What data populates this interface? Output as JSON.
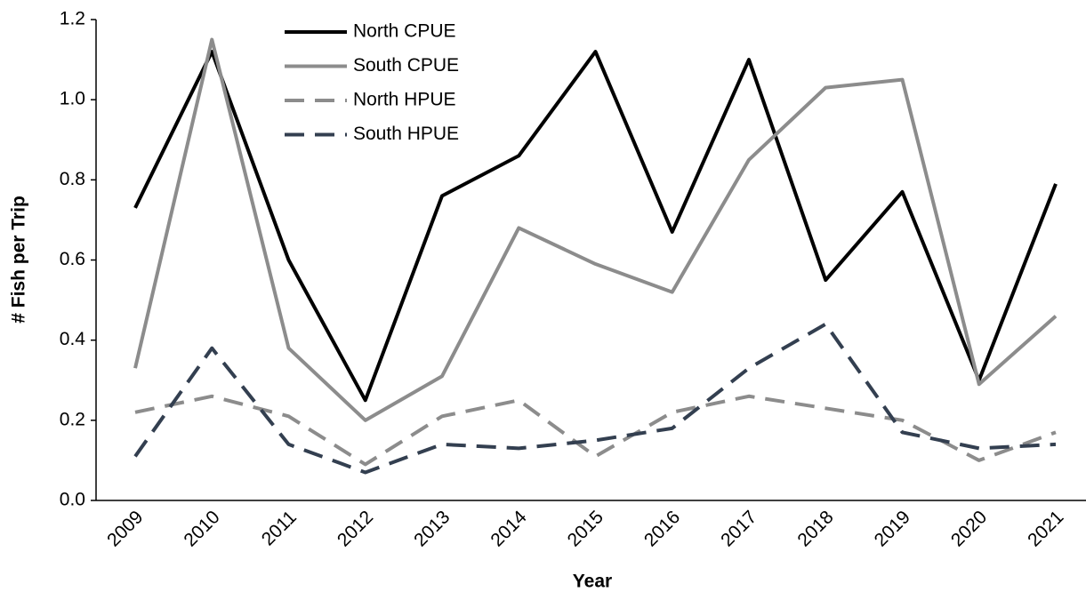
{
  "chart_data": {
    "type": "line",
    "x_label": "Year",
    "y_label": "# Fish per Trip",
    "categories": [
      "2009",
      "2010",
      "2011",
      "2012",
      "2013",
      "2014",
      "2015",
      "2016",
      "2017",
      "2018",
      "2019",
      "2020",
      "2021"
    ],
    "series": [
      {
        "name": "North CPUE",
        "color": "#000000",
        "style": "solid",
        "values": [
          0.73,
          1.12,
          0.6,
          0.25,
          0.76,
          0.86,
          1.12,
          0.67,
          1.1,
          0.55,
          0.77,
          0.3,
          0.79
        ]
      },
      {
        "name": "South CPUE",
        "color": "#8c8c8c",
        "style": "solid",
        "values": [
          0.33,
          1.15,
          0.38,
          0.2,
          0.31,
          0.68,
          0.59,
          0.52,
          0.85,
          1.03,
          1.05,
          0.29,
          0.46
        ]
      },
      {
        "name": "North HPUE",
        "color": "#8c8c8c",
        "style": "dashed",
        "values": [
          0.22,
          0.26,
          0.21,
          0.09,
          0.21,
          0.25,
          0.11,
          0.22,
          0.26,
          0.23,
          0.2,
          0.1,
          0.17
        ]
      },
      {
        "name": "South HPUE",
        "color": "#333f50",
        "style": "dashed",
        "values": [
          0.11,
          0.38,
          0.14,
          0.07,
          0.14,
          0.13,
          0.15,
          0.18,
          0.33,
          0.44,
          0.17,
          0.13,
          0.14
        ]
      }
    ],
    "ylim": [
      0,
      1.2
    ],
    "yticks": [
      {
        "value": 0,
        "label": "0.0"
      },
      0.2,
      0.4,
      0.6,
      0.8,
      {
        "value": 1,
        "label": "1.0"
      },
      1.2
    ],
    "grid": false,
    "legend": "top-left"
  }
}
